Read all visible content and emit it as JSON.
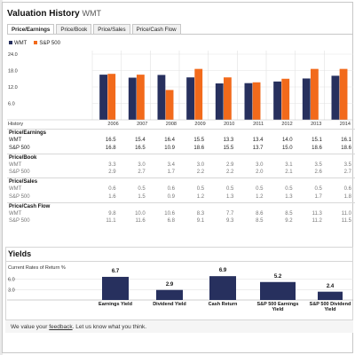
{
  "header": {
    "title": "Valuation History",
    "ticker": "WMT"
  },
  "tabs": [
    "Price/Earnings",
    "Price/Book",
    "Price/Sales",
    "Price/Cash Flow"
  ],
  "active_tab": 0,
  "colors": {
    "wmt": "#27305e",
    "sp500": "#f26a1b",
    "grid": "#e2e2e2"
  },
  "chart_data": {
    "type": "bar",
    "categories": [
      "2006",
      "2007",
      "2008",
      "2009",
      "2010",
      "2011",
      "2012",
      "2013",
      "2014"
    ],
    "series": [
      {
        "name": "WMT",
        "values": [
          16.5,
          15.4,
          16.4,
          15.5,
          13.3,
          13.4,
          14.0,
          15.1,
          16.1
        ]
      },
      {
        "name": "S&P 500",
        "values": [
          16.8,
          16.5,
          10.9,
          18.6,
          15.5,
          13.7,
          15.0,
          18.6,
          18.6
        ]
      }
    ],
    "yticks": [
      "24.0",
      "18.0",
      "12.0",
      "6.0"
    ],
    "ylim": [
      0,
      24
    ],
    "legend": [
      "WMT",
      "S&P 500"
    ],
    "history_label": "History"
  },
  "table": {
    "header_label": "Price/Earnings",
    "sections": [
      {
        "title": "Price/Earnings",
        "muted": false,
        "rows": [
          {
            "label": "WMT",
            "values": [
              "16.5",
              "15.4",
              "16.4",
              "15.5",
              "13.3",
              "13.4",
              "14.0",
              "15.1",
              "16.1"
            ]
          },
          {
            "label": "S&P 500",
            "values": [
              "16.8",
              "16.5",
              "10.9",
              "18.6",
              "15.5",
              "13.7",
              "15.0",
              "18.6",
              "18.6"
            ]
          }
        ]
      },
      {
        "title": "Price/Book",
        "muted": true,
        "rows": [
          {
            "label": "WMT",
            "values": [
              "3.3",
              "3.0",
              "3.4",
              "3.0",
              "2.9",
              "3.0",
              "3.1",
              "3.5",
              "3.5"
            ]
          },
          {
            "label": "S&P 500",
            "values": [
              "2.9",
              "2.7",
              "1.7",
              "2.2",
              "2.2",
              "2.0",
              "2.1",
              "2.6",
              "2.7"
            ]
          }
        ]
      },
      {
        "title": "Price/Sales",
        "muted": true,
        "rows": [
          {
            "label": "WMT",
            "values": [
              "0.6",
              "0.5",
              "0.6",
              "0.5",
              "0.5",
              "0.5",
              "0.5",
              "0.5",
              "0.6"
            ]
          },
          {
            "label": "S&P 500",
            "values": [
              "1.6",
              "1.5",
              "0.9",
              "1.2",
              "1.3",
              "1.2",
              "1.3",
              "1.7",
              "1.8"
            ]
          }
        ]
      },
      {
        "title": "Price/Cash Flow",
        "muted": true,
        "rows": [
          {
            "label": "WMT",
            "values": [
              "9.8",
              "10.0",
              "10.6",
              "8.3",
              "7.7",
              "8.6",
              "8.5",
              "11.3",
              "11.0"
            ]
          },
          {
            "label": "S&P 500",
            "values": [
              "11.1",
              "11.6",
              "6.8",
              "9.1",
              "9.3",
              "8.5",
              "9.2",
              "11.2",
              "11.5"
            ]
          }
        ]
      }
    ]
  },
  "yields": {
    "title": "Yields",
    "caption": "Current Rates of Return %",
    "yticks": [
      "6.0",
      "3.0"
    ],
    "ylim": [
      0,
      9
    ],
    "chart_data": {
      "type": "bar",
      "categories": [
        "Earnings Yield",
        "Dividend Yield",
        "Cash Return",
        "S&P 500 Earnings Yield",
        "S&P 500 Dividend Yield"
      ],
      "values": [
        6.7,
        2.9,
        6.9,
        5.2,
        2.4
      ],
      "labels": [
        "6.7",
        "2.9",
        "6.9",
        "5.2",
        "2.4"
      ]
    }
  },
  "feedback": {
    "before": "We value your ",
    "link": "feedback",
    "after": ". Let us know what you think."
  }
}
